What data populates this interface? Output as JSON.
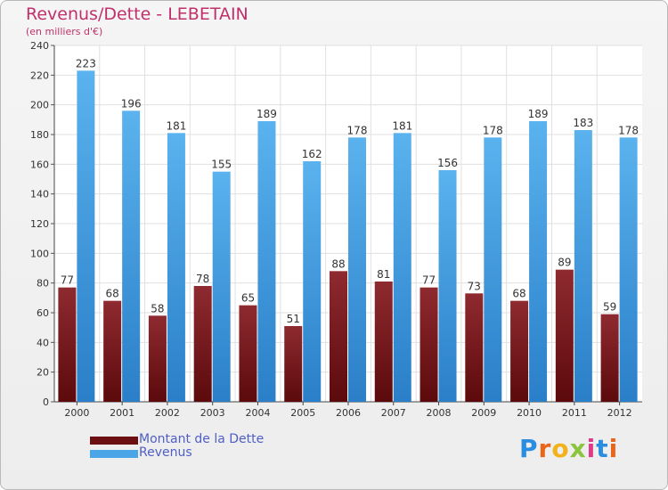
{
  "header": {
    "title": "Revenus/Dette - LEBETAIN",
    "subtitle": "(en milliers d'€)"
  },
  "chart_data": {
    "type": "bar",
    "categories": [
      "2000",
      "2001",
      "2002",
      "2003",
      "2004",
      "2005",
      "2006",
      "2007",
      "2008",
      "2009",
      "2010",
      "2011",
      "2012"
    ],
    "series": [
      {
        "name": "Montant de la Dette",
        "color": "#7a1e24",
        "values": [
          77,
          68,
          58,
          78,
          65,
          51,
          88,
          81,
          77,
          73,
          68,
          89,
          59
        ]
      },
      {
        "name": "Revenus",
        "color": "#4aa6e6",
        "values": [
          223,
          196,
          181,
          155,
          189,
          162,
          178,
          181,
          156,
          178,
          189,
          183,
          178
        ]
      }
    ],
    "ylim": [
      0,
      240
    ],
    "yticks": [
      "0",
      "20",
      "40",
      "60",
      "80",
      "100",
      "120",
      "140",
      "160",
      "180",
      "200",
      "220",
      "240"
    ],
    "grid": true,
    "legend": "bottom-left"
  },
  "legend": [
    {
      "label": "Montant de la Dette",
      "color": "#6b0f12"
    },
    {
      "label": "Revenus",
      "color": "#4aa6e6"
    }
  ],
  "brand": {
    "letters": [
      "P",
      "r",
      "o",
      "x",
      "i",
      "t",
      "i"
    ],
    "colors": [
      "#2a8de0",
      "#e8651a",
      "#f2b21b",
      "#8bc43f",
      "#e03b8b",
      "#2a8de0",
      "#e8651a"
    ]
  }
}
